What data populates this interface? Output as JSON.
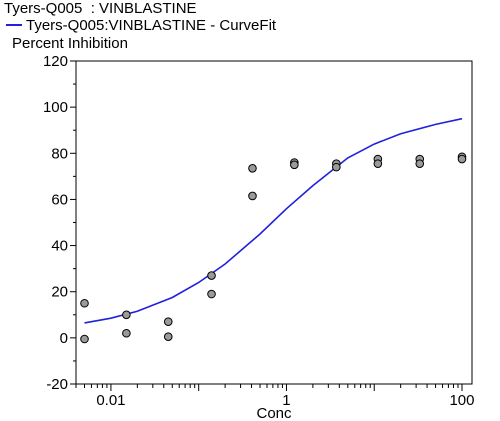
{
  "chart_data": {
    "type": "scatter",
    "title": "Tyers-Q005  : VINBLASTINE",
    "xlabel": "Conc",
    "ylabel": "Percent Inhibition",
    "x_scale": "log",
    "xlim": [
      0.004,
      130
    ],
    "ylim": [
      -20,
      120
    ],
    "x_tick_labels": [
      "0.01",
      "1",
      "100"
    ],
    "x_ticks": [
      0.01,
      1,
      100
    ],
    "y_ticks": [
      -20,
      0,
      20,
      40,
      60,
      80,
      100,
      120
    ],
    "y_tick_labels": [
      "-20",
      "0",
      "20",
      "40",
      "60",
      "80",
      "100",
      "120"
    ],
    "grid": false,
    "legend_position": "top-left",
    "series": [
      {
        "type": "scatter",
        "points": [
          {
            "x": 0.005,
            "y": 15
          },
          {
            "x": 0.005,
            "y": -0.5
          },
          {
            "x": 0.015,
            "y": 10
          },
          {
            "x": 0.015,
            "y": 2
          },
          {
            "x": 0.045,
            "y": 7
          },
          {
            "x": 0.045,
            "y": 0.5
          },
          {
            "x": 0.14,
            "y": 27
          },
          {
            "x": 0.14,
            "y": 19
          },
          {
            "x": 0.41,
            "y": 73.5
          },
          {
            "x": 0.41,
            "y": 61.5
          },
          {
            "x": 1.23,
            "y": 76
          },
          {
            "x": 1.23,
            "y": 75
          },
          {
            "x": 3.7,
            "y": 75.5
          },
          {
            "x": 3.7,
            "y": 74
          },
          {
            "x": 11,
            "y": 77.5
          },
          {
            "x": 11,
            "y": 75.5
          },
          {
            "x": 33,
            "y": 77.5
          },
          {
            "x": 33,
            "y": 75.5
          },
          {
            "x": 100,
            "y": 78.5
          },
          {
            "x": 100,
            "y": 77.5
          }
        ],
        "color": "#9a9a9a"
      },
      {
        "type": "line",
        "name": "Tyers-Q005:VINBLASTINE - CurveFit",
        "points": [
          {
            "x": 0.005,
            "y": 6.5
          },
          {
            "x": 0.01,
            "y": 8.5
          },
          {
            "x": 0.02,
            "y": 11.5
          },
          {
            "x": 0.05,
            "y": 17.5
          },
          {
            "x": 0.1,
            "y": 24
          },
          {
            "x": 0.2,
            "y": 32
          },
          {
            "x": 0.5,
            "y": 45
          },
          {
            "x": 1,
            "y": 56
          },
          {
            "x": 2,
            "y": 66
          },
          {
            "x": 5,
            "y": 78
          },
          {
            "x": 10,
            "y": 84
          },
          {
            "x": 20,
            "y": 88.5
          },
          {
            "x": 50,
            "y": 92.5
          },
          {
            "x": 100,
            "y": 95
          }
        ],
        "color": "#2020dd"
      }
    ]
  }
}
